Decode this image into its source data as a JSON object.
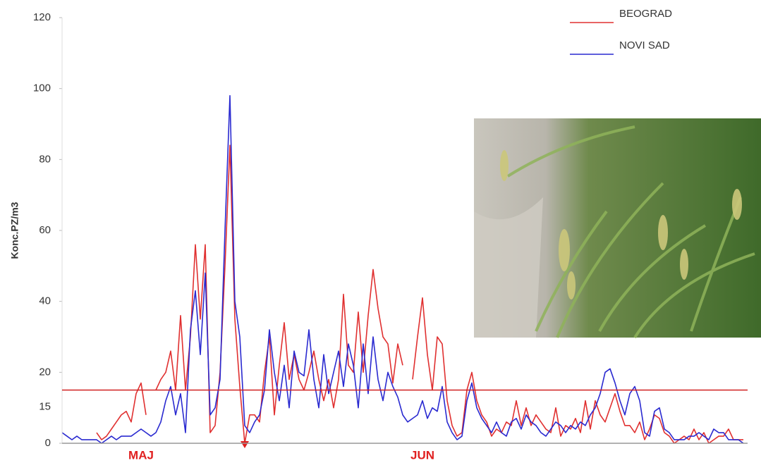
{
  "chart_data": {
    "type": "line",
    "y_label": "Konc.PZ/m3",
    "categories": [
      null,
      null,
      null,
      null,
      null,
      null,
      null,
      null,
      null,
      null,
      null,
      null,
      null,
      null,
      null,
      null,
      "MAJ",
      null,
      null,
      null,
      null,
      null,
      null,
      null,
      null,
      null,
      null,
      null,
      null,
      null,
      null,
      null,
      null,
      null,
      null,
      null,
      null,
      null,
      null,
      null,
      null,
      null,
      null,
      null,
      null,
      null,
      null,
      null,
      null,
      null,
      null,
      null,
      null,
      null,
      null,
      null,
      null,
      null,
      null,
      null,
      null,
      null,
      null,
      null,
      null,
      null,
      null,
      null,
      null,
      null,
      null,
      null,
      null,
      "JUN",
      null,
      null,
      null,
      null,
      null,
      null,
      null,
      null,
      null,
      null,
      null,
      null,
      null,
      null,
      null,
      null,
      null,
      null,
      null,
      null,
      null,
      null,
      null,
      null,
      null,
      null,
      null,
      null,
      null,
      null,
      null,
      null,
      null,
      null,
      null,
      null,
      null,
      null,
      null,
      null,
      null,
      null,
      null,
      null,
      null,
      null,
      null,
      null,
      null,
      null,
      null,
      null,
      null,
      null,
      null,
      null,
      null,
      null,
      null,
      null,
      null,
      null,
      null,
      null,
      null
    ],
    "series": [
      {
        "name": "BEOGRAD",
        "color": "#e03030",
        "values": [
          null,
          null,
          null,
          null,
          null,
          null,
          null,
          3,
          1,
          2,
          4,
          6,
          8,
          9,
          6,
          14,
          17,
          8,
          null,
          15,
          18,
          20,
          26,
          15,
          36,
          15,
          30,
          56,
          35,
          56,
          3,
          5,
          20,
          50,
          84,
          35,
          16,
          0,
          8,
          8,
          6,
          20,
          30,
          8,
          22,
          34,
          18,
          25,
          18,
          15,
          20,
          26,
          18,
          12,
          18,
          10,
          18,
          42,
          22,
          20,
          37,
          20,
          36,
          49,
          38,
          30,
          28,
          17,
          28,
          22,
          null,
          18,
          30,
          41,
          25,
          15,
          30,
          28,
          12,
          5,
          2,
          3,
          15,
          20,
          12,
          8,
          6,
          2,
          4,
          3,
          6,
          5,
          12,
          5,
          10,
          5,
          8,
          6,
          4,
          3,
          10,
          2,
          5,
          4,
          7,
          3,
          12,
          4,
          12,
          8,
          6,
          10,
          14,
          9,
          5,
          5,
          3,
          6,
          1,
          4,
          8,
          7,
          3,
          2,
          0,
          1,
          2,
          1,
          4,
          1,
          3,
          0,
          1,
          2,
          2,
          4,
          1,
          1,
          1
        ]
      },
      {
        "name": "NOVI SAD",
        "color": "#2a2ad0",
        "values": [
          3,
          2,
          1,
          2,
          1,
          1,
          1,
          1,
          0,
          1,
          2,
          1,
          2,
          2,
          2,
          3,
          4,
          3,
          2,
          3,
          6,
          12,
          16,
          8,
          14,
          3,
          32,
          43,
          25,
          48,
          8,
          10,
          18,
          60,
          98,
          40,
          30,
          5,
          3,
          6,
          8,
          15,
          32,
          20,
          12,
          22,
          10,
          26,
          20,
          19,
          32,
          18,
          10,
          25,
          14,
          20,
          26,
          16,
          28,
          22,
          10,
          28,
          14,
          30,
          18,
          12,
          20,
          16,
          13,
          8,
          6,
          7,
          8,
          12,
          7,
          10,
          9,
          16,
          6,
          3,
          1,
          2,
          12,
          17,
          10,
          7,
          5,
          3,
          6,
          3,
          2,
          6,
          7,
          4,
          8,
          6,
          5,
          3,
          2,
          4,
          6,
          5,
          3,
          5,
          4,
          6,
          5,
          8,
          10,
          14,
          20,
          21,
          17,
          12,
          8,
          14,
          16,
          12,
          3,
          2,
          9,
          10,
          4,
          3,
          1,
          1,
          1,
          2,
          2,
          3,
          2,
          1,
          4,
          3,
          3,
          1,
          1,
          1,
          0
        ]
      }
    ],
    "threshold": {
      "value": 15,
      "color": "#d02020"
    },
    "ylim": [
      0,
      120
    ],
    "yticks": [
      0,
      20,
      40,
      60,
      80,
      100,
      120
    ],
    "grid": false
  }
}
